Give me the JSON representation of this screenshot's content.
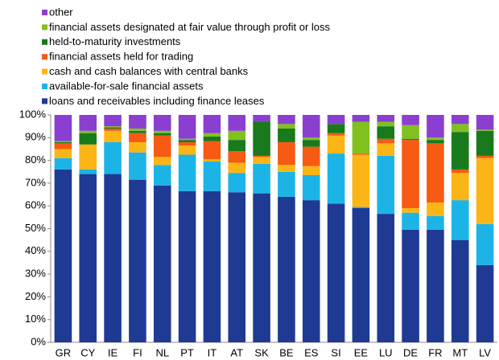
{
  "chart_data": {
    "type": "stacked_bar",
    "categories": [
      "GR",
      "CY",
      "IE",
      "FI",
      "NL",
      "PT",
      "IT",
      "AT",
      "SK",
      "BE",
      "ES",
      "SI",
      "EE",
      "LU",
      "DE",
      "FR",
      "MT",
      "LV"
    ],
    "series": [
      {
        "name": "loans and receivables including finance leases",
        "color": "#1f3a93",
        "values": [
          76,
          74,
          74,
          71.5,
          69,
          66.5,
          66.5,
          66,
          65.5,
          64,
          62.5,
          61,
          59,
          56.5,
          49.5,
          49.5,
          45,
          34
        ]
      },
      {
        "name": "available-for-sale financial assets",
        "color": "#1cb4e6",
        "values": [
          5,
          2,
          14,
          12,
          9,
          16,
          13,
          8.5,
          13,
          11,
          11,
          22,
          0.5,
          25.5,
          7.5,
          6,
          17.5,
          18
        ]
      },
      {
        "name": "cash and cash balances with central banks",
        "color": "#fbb516",
        "values": [
          4,
          11,
          5,
          4.5,
          3.5,
          4,
          1,
          4.5,
          3,
          3,
          4,
          8,
          23,
          5.5,
          2,
          6,
          12,
          29
        ]
      },
      {
        "name": "financial assets held for trading",
        "color": "#f65a13",
        "values": [
          2.5,
          0,
          1,
          4,
          9.5,
          1.5,
          8,
          5,
          0.5,
          10,
          8.5,
          1,
          0.5,
          2,
          30,
          26,
          1.5,
          1
        ]
      },
      {
        "name": "held-to-maturity investments",
        "color": "#187a1c",
        "values": [
          0.5,
          5,
          0.5,
          1,
          1,
          1,
          2,
          5,
          15,
          6,
          3,
          4,
          0,
          5.5,
          0.5,
          1.5,
          16.5,
          11
        ]
      },
      {
        "name": "financial assets designated at fair value through profit or loss",
        "color": "#80c11f",
        "values": [
          0.5,
          1,
          0.5,
          1,
          1,
          0.5,
          1.5,
          4,
          0,
          2,
          1,
          0,
          14,
          2,
          6,
          1,
          3.5,
          0.5
        ]
      },
      {
        "name": "other",
        "color": "#8b3fd1",
        "values": [
          11.5,
          7,
          5,
          6,
          7,
          10.5,
          8,
          7,
          3,
          4,
          10,
          4,
          3,
          3,
          4.5,
          10,
          4,
          6.5
        ]
      }
    ],
    "ylim": [
      0,
      100
    ],
    "yticks": [
      {
        "value": 0,
        "label": "0%"
      },
      {
        "value": 10,
        "label": "10%"
      },
      {
        "value": 20,
        "label": "20%"
      },
      {
        "value": 30,
        "label": "30%"
      },
      {
        "value": 40,
        "label": "40%"
      },
      {
        "value": 50,
        "label": "50%"
      },
      {
        "value": 60,
        "label": "60%"
      },
      {
        "value": 70,
        "label": "70%"
      },
      {
        "value": 80,
        "label": "80%"
      },
      {
        "value": 90,
        "label": "90%"
      },
      {
        "value": 100,
        "label": "100%"
      }
    ],
    "grid": false
  }
}
